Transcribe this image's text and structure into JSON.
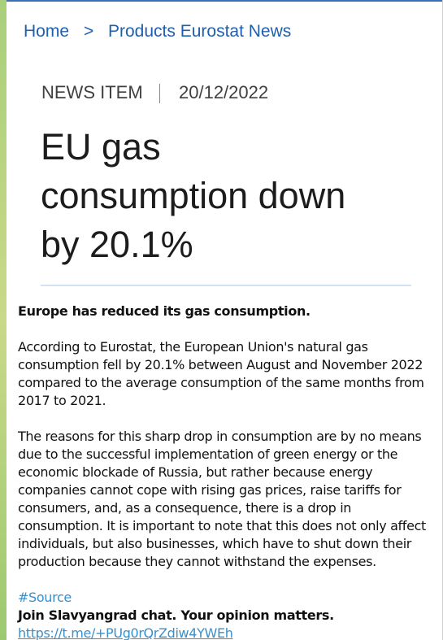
{
  "breadcrumb": {
    "home": "Home",
    "separator": ">",
    "current": "Products Eurostat News"
  },
  "article": {
    "kind": "NEWS ITEM",
    "date": "20/12/2022",
    "title_lines": [
      "EU gas",
      "consumption down",
      "by 20.1%"
    ]
  },
  "post": {
    "lead": "Europe has reduced its gas consumption.",
    "paragraphs": [
      [
        "According to Eurostat, the European Union's natural gas",
        "consumption fell by 20.1% between August and November 2022",
        "compared to the average consumption of the same months from",
        "2017 to 2021."
      ],
      [
        "The reasons for this sharp drop in consumption are by no means",
        "due to the successful implementation of green energy or the",
        "economic blockade of Russia, but rather because energy",
        "companies cannot cope with rising gas prices, raise tariffs for",
        "consumers, and, as a consequence, there is a drop in",
        "consumption. It is important to note that this does not only affect",
        "individuals, but also businesses, which have to shut down their",
        "production because they cannot withstand the expenses."
      ]
    ],
    "hashtag": "#Source",
    "cta": "Join Slavyangrad chat. Your opinion matters.",
    "link": "https://t.me/+PUg0rQrZdiw4YWEh"
  }
}
